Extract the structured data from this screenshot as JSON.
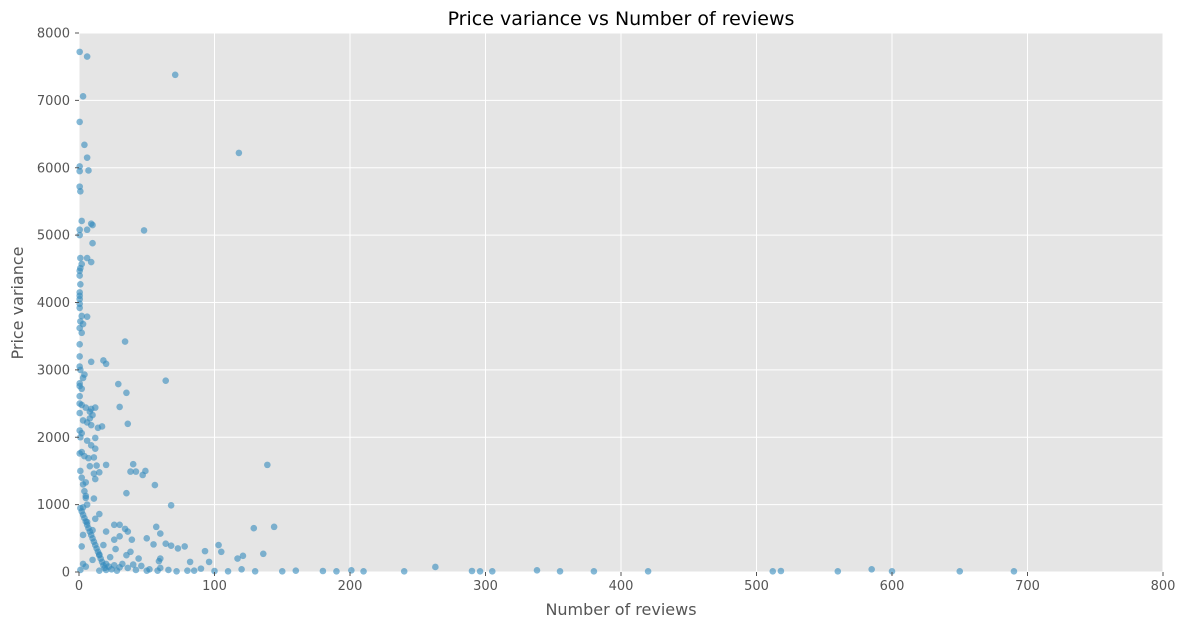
{
  "chart_data": {
    "type": "scatter",
    "title": "Price variance vs Number of reviews",
    "xlabel": "Number of reviews",
    "ylabel": "Price variance",
    "xlim": [
      0,
      800
    ],
    "ylim": [
      0,
      8000
    ],
    "x_ticks": [
      "0",
      "100",
      "200",
      "300",
      "400",
      "500",
      "600",
      "700",
      "800"
    ],
    "y_ticks": [
      "0",
      "1000",
      "2000",
      "3000",
      "4000",
      "5000",
      "6000",
      "7000",
      "8000"
    ],
    "grid": true,
    "legend": "none",
    "colors": {
      "background": "#e5e5e5",
      "grid": "#ffffff",
      "point": "#348abd"
    },
    "series": [
      {
        "values": [
          [
            0.5,
            7720
          ],
          [
            6,
            7650
          ],
          [
            71,
            7380
          ],
          [
            3,
            7060
          ],
          [
            0.5,
            6680
          ],
          [
            118,
            6220
          ],
          [
            4,
            6340
          ],
          [
            6,
            6150
          ],
          [
            0.5,
            6020
          ],
          [
            0.5,
            5950
          ],
          [
            7,
            5960
          ],
          [
            0.5,
            5720
          ],
          [
            1,
            5650
          ],
          [
            2,
            5210
          ],
          [
            9,
            5170
          ],
          [
            10,
            5150
          ],
          [
            6,
            5080
          ],
          [
            48,
            5070
          ],
          [
            0.5,
            5080
          ],
          [
            0.5,
            5000
          ],
          [
            10,
            4880
          ],
          [
            1,
            4660
          ],
          [
            6,
            4660
          ],
          [
            9,
            4600
          ],
          [
            2,
            4570
          ],
          [
            1,
            4510
          ],
          [
            0.5,
            4470
          ],
          [
            0.5,
            4400
          ],
          [
            1,
            4270
          ],
          [
            0.5,
            4150
          ],
          [
            0.5,
            4100
          ],
          [
            0.5,
            4050
          ],
          [
            0.5,
            3980
          ],
          [
            0.5,
            3920
          ],
          [
            2,
            3800
          ],
          [
            6,
            3790
          ],
          [
            1,
            3720
          ],
          [
            3,
            3680
          ],
          [
            0.5,
            3620
          ],
          [
            2,
            3550
          ],
          [
            0.5,
            3380
          ],
          [
            34,
            3420
          ],
          [
            0.5,
            3200
          ],
          [
            9,
            3120
          ],
          [
            18,
            3140
          ],
          [
            20,
            3090
          ],
          [
            0.5,
            3050
          ],
          [
            1,
            3000
          ],
          [
            4,
            2930
          ],
          [
            3,
            2880
          ],
          [
            0.5,
            2800
          ],
          [
            0.5,
            2760
          ],
          [
            64,
            2840
          ],
          [
            29,
            2790
          ],
          [
            2,
            2720
          ],
          [
            35,
            2660
          ],
          [
            0.5,
            2610
          ],
          [
            0.5,
            2500
          ],
          [
            2,
            2480
          ],
          [
            30,
            2450
          ],
          [
            5,
            2440
          ],
          [
            9,
            2420
          ],
          [
            12,
            2440
          ],
          [
            8,
            2380
          ],
          [
            0.5,
            2360
          ],
          [
            10,
            2330
          ],
          [
            8,
            2280
          ],
          [
            3,
            2250
          ],
          [
            36,
            2200
          ],
          [
            6,
            2220
          ],
          [
            9,
            2180
          ],
          [
            17,
            2160
          ],
          [
            14,
            2140
          ],
          [
            0.5,
            2100
          ],
          [
            2,
            2060
          ],
          [
            1,
            2000
          ],
          [
            12,
            1990
          ],
          [
            6,
            1950
          ],
          [
            9,
            1880
          ],
          [
            12,
            1830
          ],
          [
            2,
            1780
          ],
          [
            0.5,
            1760
          ],
          [
            4,
            1720
          ],
          [
            7,
            1690
          ],
          [
            11,
            1700
          ],
          [
            20,
            1590
          ],
          [
            40,
            1600
          ],
          [
            8,
            1570
          ],
          [
            13,
            1580
          ],
          [
            139,
            1590
          ],
          [
            38,
            1490
          ],
          [
            42,
            1490
          ],
          [
            49,
            1500
          ],
          [
            47,
            1440
          ],
          [
            11,
            1460
          ],
          [
            15,
            1480
          ],
          [
            12,
            1380
          ],
          [
            5,
            1330
          ],
          [
            56,
            1290
          ],
          [
            35,
            1170
          ],
          [
            5,
            1130
          ],
          [
            11,
            1090
          ],
          [
            68,
            990
          ],
          [
            3,
            960
          ],
          [
            15,
            860
          ],
          [
            12,
            790
          ],
          [
            6,
            740
          ],
          [
            144,
            670
          ],
          [
            129,
            650
          ],
          [
            57,
            670
          ],
          [
            30,
            700
          ],
          [
            26,
            700
          ],
          [
            34,
            640
          ],
          [
            60,
            570
          ],
          [
            20,
            600
          ],
          [
            36,
            600
          ],
          [
            10,
            620
          ],
          [
            3,
            550
          ],
          [
            39,
            480
          ],
          [
            26,
            480
          ],
          [
            30,
            530
          ],
          [
            50,
            500
          ],
          [
            103,
            400
          ],
          [
            55,
            410
          ],
          [
            64,
            420
          ],
          [
            68,
            390
          ],
          [
            78,
            380
          ],
          [
            73,
            350
          ],
          [
            93,
            310
          ],
          [
            105,
            300
          ],
          [
            38,
            300
          ],
          [
            27,
            340
          ],
          [
            18,
            400
          ],
          [
            2,
            380
          ],
          [
            136,
            270
          ],
          [
            121,
            240
          ],
          [
            117,
            200
          ],
          [
            60,
            200
          ],
          [
            15,
            260
          ],
          [
            35,
            250
          ],
          [
            23,
            220
          ],
          [
            44,
            200
          ],
          [
            96,
            150
          ],
          [
            82,
            150
          ],
          [
            59,
            160
          ],
          [
            10,
            180
          ],
          [
            3,
            120
          ],
          [
            20,
            120
          ],
          [
            40,
            110
          ],
          [
            5,
            80
          ],
          [
            30,
            70
          ],
          [
            60,
            60
          ],
          [
            90,
            50
          ],
          [
            120,
            40
          ],
          [
            1,
            30
          ],
          [
            15,
            20
          ],
          [
            50,
            20
          ],
          [
            80,
            20
          ],
          [
            110,
            10
          ],
          [
            150,
            10
          ],
          [
            180,
            15
          ],
          [
            201,
            25
          ],
          [
            210,
            10
          ],
          [
            240,
            10
          ],
          [
            263,
            75
          ],
          [
            290,
            15
          ],
          [
            296,
            10
          ],
          [
            305,
            10
          ],
          [
            338,
            25
          ],
          [
            355,
            10
          ],
          [
            380,
            10
          ],
          [
            420,
            10
          ],
          [
            512,
            10
          ],
          [
            518,
            15
          ],
          [
            560,
            10
          ],
          [
            585,
            40
          ],
          [
            600,
            10
          ],
          [
            650,
            10
          ],
          [
            690,
            10
          ],
          [
            1,
            1500
          ],
          [
            2,
            1400
          ],
          [
            3,
            1300
          ],
          [
            4,
            1200
          ],
          [
            5,
            1100
          ],
          [
            6,
            1000
          ],
          [
            1,
            950
          ],
          [
            2,
            900
          ],
          [
            3,
            850
          ],
          [
            4,
            800
          ],
          [
            5,
            750
          ],
          [
            6,
            700
          ],
          [
            7,
            650
          ],
          [
            8,
            600
          ],
          [
            9,
            550
          ],
          [
            10,
            500
          ],
          [
            11,
            450
          ],
          [
            12,
            400
          ],
          [
            13,
            350
          ],
          [
            14,
            300
          ],
          [
            15,
            250
          ],
          [
            16,
            200
          ],
          [
            17,
            150
          ],
          [
            18,
            100
          ],
          [
            19,
            60
          ],
          [
            20,
            30
          ],
          [
            22,
            80
          ],
          [
            24,
            40
          ],
          [
            26,
            100
          ],
          [
            28,
            20
          ],
          [
            32,
            120
          ],
          [
            36,
            60
          ],
          [
            42,
            30
          ],
          [
            46,
            90
          ],
          [
            52,
            40
          ],
          [
            58,
            20
          ],
          [
            66,
            30
          ],
          [
            72,
            10
          ],
          [
            85,
            20
          ],
          [
            100,
            15
          ],
          [
            130,
            10
          ],
          [
            160,
            20
          ],
          [
            190,
            10
          ]
        ]
      }
    ]
  }
}
